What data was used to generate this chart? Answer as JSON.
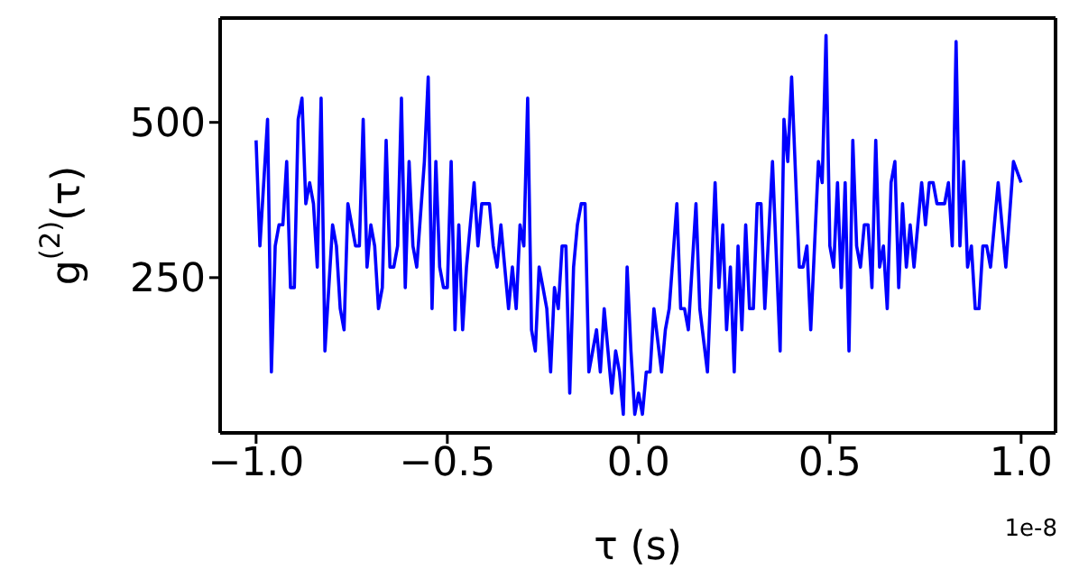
{
  "chart_data": {
    "type": "line",
    "xlabel": "τ (s)",
    "ylabel": "g$^{(2)}$(τ)",
    "annotations": [
      "1e-8"
    ],
    "xlim": [
      -1.094,
      1.09
    ],
    "xticks": [
      {
        "value": -1,
        "label": "−1.0"
      },
      {
        "value": -0.5,
        "label": "−0.5"
      },
      {
        "value": 0,
        "label": "0.0"
      },
      {
        "value": 0.5,
        "label": "0.5"
      },
      {
        "value": 1,
        "label": "1.0"
      }
    ],
    "ylim": [
      0,
      668
    ],
    "yticks": [
      250,
      500
    ],
    "marker": "none",
    "line_style": "solid",
    "x": [
      -1.0,
      -0.99,
      -0.97,
      -0.96,
      -0.95,
      -0.94,
      -0.93,
      -0.92,
      -0.91,
      -0.9,
      -0.89,
      -0.88,
      -0.87,
      -0.86,
      -0.85,
      -0.84,
      -0.83,
      -0.82,
      -0.8,
      -0.79,
      -0.78,
      -0.77,
      -0.76,
      -0.74,
      -0.73,
      -0.72,
      -0.71,
      -0.7,
      -0.69,
      -0.68,
      -0.67,
      -0.66,
      -0.65,
      -0.64,
      -0.63,
      -0.62,
      -0.61,
      -0.6,
      -0.59,
      -0.58,
      -0.56,
      -0.55,
      -0.54,
      -0.53,
      -0.52,
      -0.51,
      -0.5,
      -0.49,
      -0.48,
      -0.47,
      -0.46,
      -0.45,
      -0.44,
      -0.43,
      -0.42,
      -0.41,
      -0.39,
      -0.38,
      -0.37,
      -0.36,
      -0.35,
      -0.34,
      -0.33,
      -0.32,
      -0.31,
      -0.3,
      -0.29,
      -0.28,
      -0.27,
      -0.26,
      -0.25,
      -0.24,
      -0.23,
      -0.22,
      -0.21,
      -0.2,
      -0.19,
      -0.18,
      -0.17,
      -0.16,
      -0.15,
      -0.14,
      -0.13,
      -0.12,
      -0.11,
      -0.1,
      -0.09,
      -0.08,
      -0.07,
      -0.06,
      -0.05,
      -0.04,
      -0.03,
      -0.02,
      -0.01,
      0.0,
      0.01,
      0.02,
      0.03,
      0.04,
      0.06,
      0.07,
      0.08,
      0.1,
      0.11,
      0.12,
      0.13,
      0.15,
      0.16,
      0.18,
      0.2,
      0.21,
      0.22,
      0.23,
      0.24,
      0.25,
      0.26,
      0.27,
      0.28,
      0.29,
      0.3,
      0.31,
      0.32,
      0.33,
      0.35,
      0.37,
      0.38,
      0.39,
      0.4,
      0.42,
      0.43,
      0.44,
      0.45,
      0.47,
      0.48,
      0.49,
      0.5,
      0.51,
      0.52,
      0.53,
      0.54,
      0.55,
      0.56,
      0.57,
      0.58,
      0.59,
      0.6,
      0.61,
      0.62,
      0.63,
      0.64,
      0.65,
      0.66,
      0.67,
      0.68,
      0.69,
      0.7,
      0.71,
      0.72,
      0.73,
      0.74,
      0.75,
      0.76,
      0.77,
      0.78,
      0.8,
      0.81,
      0.82,
      0.83,
      0.84,
      0.85,
      0.86,
      0.87,
      0.88,
      0.89,
      0.9,
      0.91,
      0.92,
      0.93,
      0.94,
      0.95,
      0.96,
      0.98,
      1.0
    ],
    "series": [
      {
        "color": "#0000ff",
        "values": [
          471,
          301,
          505,
          98,
          301,
          335,
          335,
          437,
          234,
          234,
          505,
          539,
          369,
          403,
          369,
          267,
          539,
          132,
          335,
          301,
          200,
          166,
          369,
          301,
          301,
          505,
          267,
          335,
          301,
          200,
          234,
          471,
          267,
          267,
          301,
          539,
          234,
          437,
          301,
          267,
          437,
          573,
          200,
          437,
          267,
          234,
          234,
          437,
          166,
          335,
          166,
          267,
          335,
          403,
          301,
          369,
          369,
          301,
          267,
          335,
          267,
          200,
          267,
          200,
          335,
          301,
          539,
          166,
          132,
          267,
          234,
          200,
          98,
          234,
          200,
          301,
          301,
          64,
          267,
          335,
          369,
          369,
          98,
          132,
          166,
          98,
          200,
          132,
          64,
          132,
          98,
          30,
          267,
          132,
          30,
          64,
          30,
          98,
          98,
          200,
          98,
          166,
          200,
          369,
          200,
          200,
          166,
          369,
          200,
          98,
          403,
          234,
          335,
          166,
          267,
          98,
          301,
          166,
          335,
          200,
          200,
          369,
          369,
          200,
          437,
          132,
          505,
          437,
          573,
          267,
          267,
          301,
          166,
          437,
          403,
          640,
          301,
          267,
          403,
          234,
          403,
          132,
          471,
          301,
          267,
          335,
          335,
          234,
          471,
          267,
          301,
          200,
          403,
          437,
          234,
          369,
          267,
          335,
          267,
          335,
          403,
          335,
          403,
          403,
          369,
          369,
          403,
          301,
          630,
          301,
          437,
          267,
          301,
          200,
          200,
          301,
          301,
          267,
          335,
          403,
          335,
          267,
          437,
          403
        ]
      }
    ]
  }
}
